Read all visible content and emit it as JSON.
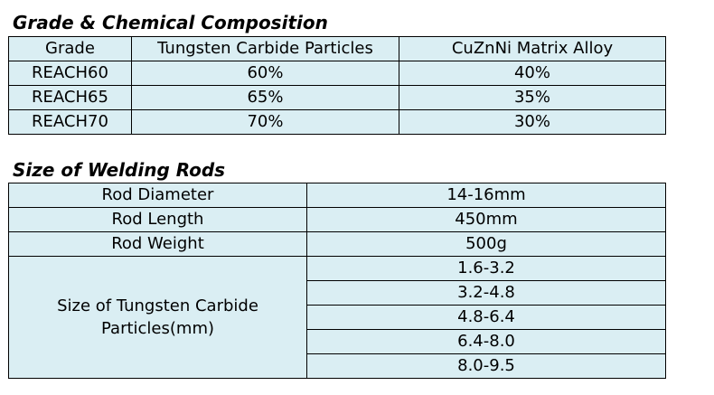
{
  "grade_section": {
    "title": "Grade & Chemical Composition",
    "headers": [
      "Grade",
      "Tungsten Carbide Particles",
      "CuZnNi Matrix Alloy"
    ],
    "rows": [
      [
        "REACH60",
        "60%",
        "40%"
      ],
      [
        "REACH65",
        "65%",
        "35%"
      ],
      [
        "REACH70",
        "70%",
        "30%"
      ]
    ]
  },
  "size_section": {
    "title": "Size of Welding Rods",
    "rows": [
      [
        "Rod Diameter",
        "14-16mm"
      ],
      [
        "Rod Length",
        "450mm"
      ],
      [
        "Rod Weight",
        "500g"
      ]
    ],
    "particle_label_line1": "Size of Tungsten Carbide",
    "particle_label_line2": "Particles(mm)",
    "particle_sizes": [
      "1.6-3.2",
      "3.2-4.8",
      "4.8-6.4",
      "6.4-8.0",
      "8.0-9.5"
    ]
  },
  "colors": {
    "cell_background": "#daeef3",
    "border": "#000000"
  }
}
